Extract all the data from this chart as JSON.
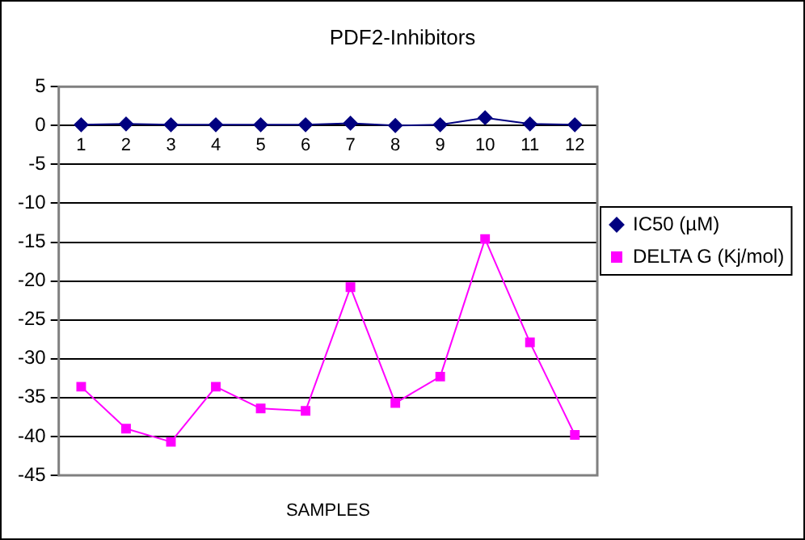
{
  "chart_data": {
    "type": "line",
    "title": "PDF2-Inhibitors",
    "xlabel": "SAMPLES",
    "categories": [
      "1",
      "2",
      "3",
      "4",
      "5",
      "6",
      "7",
      "8",
      "9",
      "10",
      "11",
      "12"
    ],
    "series": [
      {
        "name": "IC50 (µM)",
        "color": "#000080",
        "marker": "diamond",
        "values": [
          0.1,
          0.2,
          0.1,
          0.1,
          0.1,
          0.1,
          0.3,
          0.0,
          0.1,
          1.0,
          0.2,
          0.1
        ]
      },
      {
        "name": "DELTA G (Kj/mol)",
        "color": "#ff00ff",
        "marker": "square",
        "values": [
          -33.6,
          -39.0,
          -40.7,
          -33.6,
          -36.4,
          -36.7,
          -20.8,
          -35.7,
          -32.3,
          -14.6,
          -27.9,
          -39.8
        ]
      }
    ],
    "ylim": [
      -45,
      5
    ],
    "yticks": [
      -45,
      -40,
      -35,
      -30,
      -25,
      -20,
      -15,
      -10,
      -5,
      0,
      5
    ],
    "grid": "y",
    "legend": "right",
    "line_style": "solid"
  }
}
